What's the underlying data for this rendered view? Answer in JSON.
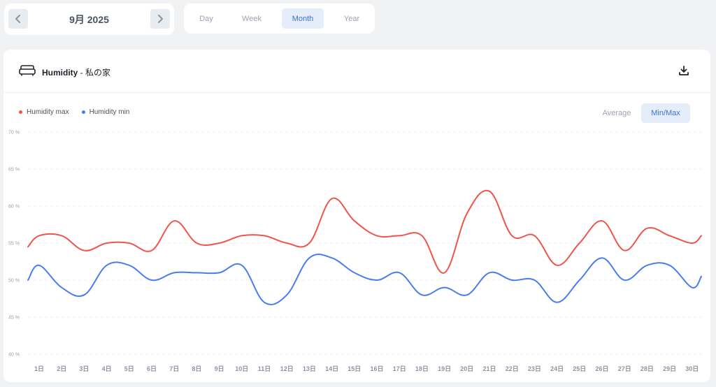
{
  "date_nav": {
    "label": "9月 2025",
    "prev_icon": "chevron-left-icon",
    "next_icon": "chevron-right-icon"
  },
  "range_tabs": [
    {
      "label": "Day",
      "active": false
    },
    {
      "label": "Week",
      "active": false
    },
    {
      "label": "Month",
      "active": true
    },
    {
      "label": "Year",
      "active": false
    }
  ],
  "header": {
    "icon": "sofa-icon",
    "metric": "Humidity",
    "separator": " - ",
    "location": "私の家",
    "download_icon": "download-icon"
  },
  "legend": [
    {
      "label": "Humidity max",
      "color": "#f0544a"
    },
    {
      "label": "Humidity min",
      "color": "#4a7cf0"
    }
  ],
  "mode_toggle": [
    {
      "label": "Average",
      "active": false
    },
    {
      "label": "Min/Max",
      "active": true
    }
  ],
  "chart_data": {
    "type": "line",
    "categories": [
      "1日",
      "2日",
      "3日",
      "4日",
      "5日",
      "6日",
      "7日",
      "8日",
      "9日",
      "10日",
      "11日",
      "12日",
      "13日",
      "14日",
      "15日",
      "16日",
      "17日",
      "18日",
      "19日",
      "20日",
      "21日",
      "22日",
      "23日",
      "24日",
      "25日",
      "26日",
      "27日",
      "28日",
      "29日",
      "30日"
    ],
    "y_ticks": [
      "40 %",
      "45 %",
      "50 %",
      "55 %",
      "60 %",
      "65 %",
      "70 %"
    ],
    "ylim": [
      40,
      70
    ],
    "series": [
      {
        "name": "Humidity max",
        "color": "#f0544a",
        "start": 54.5,
        "values": [
          56,
          56,
          54,
          55,
          55,
          54,
          58,
          55,
          55,
          56,
          56,
          55,
          55,
          61,
          58,
          56,
          56,
          56,
          51,
          59,
          62,
          56,
          56,
          52,
          55,
          58,
          54,
          57,
          56,
          55
        ],
        "end": 56
      },
      {
        "name": "Humidity min",
        "color": "#4a7cf0",
        "start": 50,
        "values": [
          52,
          49,
          48,
          52,
          52,
          50,
          51,
          51,
          51,
          52,
          47,
          48,
          53,
          53,
          51,
          50,
          51,
          48,
          49,
          48,
          51,
          50,
          50,
          47,
          50,
          53,
          50,
          52,
          52,
          49
        ],
        "end": 50.5
      }
    ],
    "grid": true
  }
}
